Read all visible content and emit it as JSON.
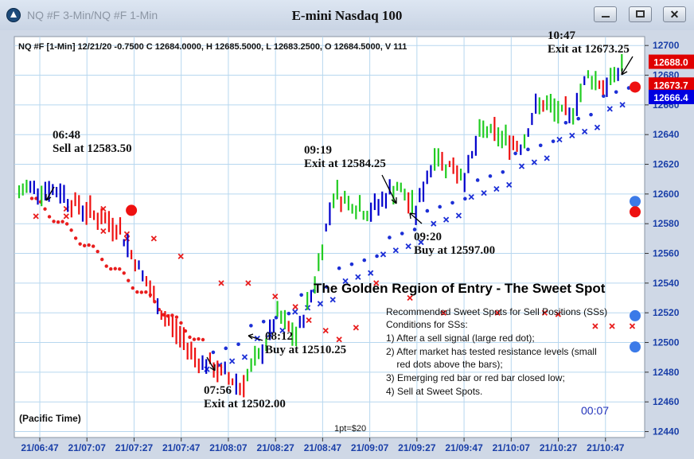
{
  "window": {
    "subtitle": "NQ #F 3-Min/NQ #F 1-Min",
    "title": "E-mini Nasdaq 100",
    "close_glyph": "✕"
  },
  "chart_data": {
    "type": "candlestick",
    "header": "NQ #F [1-Min] 12/21/20  -0.7500 C 12684.0000, H 12685.5000, L 12683.2500, O 12684.5000, V 111",
    "y_axis": {
      "ylim": [
        12436,
        12706
      ],
      "ticks": [
        12440,
        12460,
        12480,
        12500,
        12520,
        12540,
        12560,
        12580,
        12600,
        12620,
        12640,
        12660,
        12680,
        12700
      ]
    },
    "x_axis": {
      "tick_labels": [
        "21/06:47",
        "21/07:07",
        "21/07:27",
        "21/07:47",
        "21/08:07",
        "21/08:27",
        "21/08:47",
        "21/09:07",
        "21/09:27",
        "21/09:47",
        "21/10:07",
        "21/10:27",
        "21/10:47"
      ]
    },
    "price_tags": [
      {
        "label": "12688.0",
        "value": 12688.0,
        "color": "#e00000"
      },
      {
        "label": "12673.7",
        "value": 12673.7,
        "color": "#e00000"
      },
      {
        "label": "12666.4",
        "value": 12666.4,
        "color": "#0000e0"
      }
    ],
    "bar_colors": {
      "up": "#22cc22",
      "up_strong": "#0000cc",
      "down": "#ee1111"
    },
    "bar_segments": [
      [
        12600,
        12606,
        3,
        0
      ],
      [
        12605,
        12600,
        10,
        1
      ],
      [
        12596,
        12578,
        13,
        2
      ],
      [
        12580,
        12550,
        6,
        2
      ],
      [
        12550,
        12515,
        7,
        2
      ],
      [
        12517,
        12485,
        10,
        2
      ],
      [
        12487,
        12472,
        10,
        2
      ],
      [
        12470,
        12490,
        5,
        0
      ],
      [
        12489,
        12517,
        5,
        1
      ],
      [
        12518,
        12503,
        5,
        0
      ],
      [
        12503,
        12540,
        5,
        1
      ],
      [
        12541,
        12600,
        5,
        1
      ],
      [
        12601,
        12586,
        10,
        0
      ],
      [
        12588,
        12606,
        7,
        1
      ],
      [
        12605,
        12588,
        5,
        0
      ],
      [
        12589,
        12625,
        5,
        1
      ],
      [
        12626,
        12612,
        8,
        0
      ],
      [
        12612,
        12645,
        5,
        1
      ],
      [
        12644,
        12632,
        10,
        0
      ],
      [
        12633,
        12662,
        5,
        1
      ],
      [
        12661,
        12652,
        8,
        0
      ],
      [
        12652,
        12680,
        5,
        1
      ],
      [
        12680,
        12672,
        5,
        0
      ],
      [
        12672,
        12690,
        5,
        1
      ]
    ],
    "series": [
      {
        "name": "",
        "style": "red-x",
        "points": [
          [
            5,
            12585
          ],
          [
            14,
            12585
          ],
          [
            14,
            12590
          ],
          [
            25,
            12590
          ],
          [
            25,
            12575
          ],
          [
            32,
            12573
          ],
          [
            32,
            12570
          ],
          [
            40,
            12570
          ],
          [
            48,
            12558
          ],
          [
            60,
            12540
          ],
          [
            68,
            12540
          ],
          [
            76,
            12531
          ],
          [
            82,
            12524
          ],
          [
            86,
            12515
          ],
          [
            91,
            12508
          ],
          [
            95,
            12502
          ],
          [
            100,
            12510
          ],
          [
            106,
            12540
          ],
          [
            116,
            12530
          ],
          [
            126,
            12520
          ],
          [
            142,
            12520
          ],
          [
            156,
            12520
          ],
          [
            160,
            12519
          ],
          [
            171,
            12511
          ],
          [
            176,
            12511
          ],
          [
            182,
            12511
          ],
          [
            186,
            12510
          ],
          [
            200,
            12518
          ],
          [
            216,
            12540
          ],
          [
            240,
            12560
          ],
          [
            260,
            12560
          ],
          [
            270,
            12550
          ],
          [
            282,
            12565
          ],
          [
            300,
            12560
          ],
          [
            316,
            12570
          ],
          [
            332,
            12560
          ],
          [
            346,
            12575
          ],
          [
            360,
            12580
          ],
          [
            378,
            12595
          ],
          [
            390,
            12590
          ]
        ]
      },
      {
        "name": "",
        "style": "red-x-line",
        "points": []
      }
    ],
    "annotations": [
      {
        "time": "06:48",
        "text": "Sell at 12583.50"
      },
      {
        "time": "07:56",
        "text": "Exit at 12502.00"
      },
      {
        "time": "08:12",
        "text": "Buy at 12510.25"
      },
      {
        "time": "09:19",
        "text": "Exit at 12584.25"
      },
      {
        "time": "09:20",
        "text": "Buy at 12597.00"
      },
      {
        "time": "10:47",
        "text": "Exit at 12673.25"
      }
    ],
    "signal_dots": [
      {
        "color": "#ee1111",
        "value": 12589,
        "bar": 30
      },
      {
        "color": "#3b7ae8",
        "value": 12497,
        "bar": 216
      },
      {
        "color": "#3b7ae8",
        "value": 12518,
        "bar": 250
      },
      {
        "color": "#3b7ae8",
        "value": 12595,
        "bar": 418
      },
      {
        "color": "#ee1111",
        "value": 12588,
        "bar": 414
      },
      {
        "color": "#ee1111",
        "value": 12672,
        "bar": 648
      }
    ],
    "headline": "The Golden Region of Entry - The Sweet Spot",
    "notes": [
      "Recommended Sweet Spots for Sell Positions (SSs)",
      "Conditions for SSs:",
      "1) After a sell signal (large red dot);",
      "2) After market has tested resistance levels (small",
      "    red dots above the bars);",
      "3) Emerging red bar or red bar closed low;",
      "4) Sell at Sweet Spots."
    ],
    "footer_left": "(Pacific Time)",
    "footer_mid": "1pt=$20",
    "footer_right": "00:07"
  }
}
